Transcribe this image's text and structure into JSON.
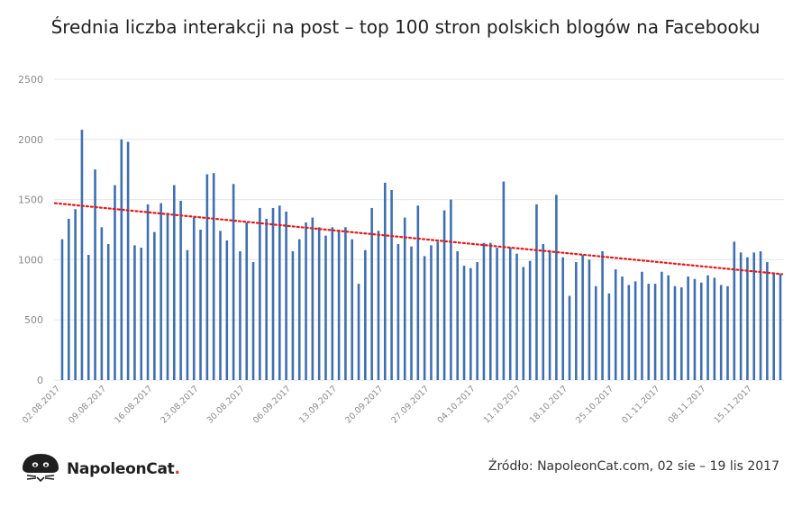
{
  "brand": {
    "name": "NapoleonCat",
    "dot": "."
  },
  "source": "Źródło: NapoleonCat.com, 02 sie – 19 lis 2017",
  "colors": {
    "bar": "#3f6fb1",
    "trend": "#e31a1c",
    "grid": "#e6e6e6",
    "axis_text": "#8a8a8a"
  },
  "icons": {
    "logo": "cat-logo-icon"
  },
  "chart_data": {
    "type": "bar",
    "title": "Średnia liczba interakcji na post – top 100 stron polskich blogów na Facebooku",
    "xlabel": "",
    "ylabel": "",
    "ylim": [
      0,
      2500
    ],
    "yticks": [
      0,
      500,
      1000,
      1500,
      2000,
      2500
    ],
    "grid": true,
    "legend": "none",
    "x_tick_labels": [
      "02.08.2017",
      "09.08.2017",
      "16.08.2017",
      "23.08.2017",
      "30.08.2017",
      "06.09.2017",
      "13.09.2017",
      "20.09.2017",
      "27.09.2017",
      "04.10.2017",
      "11.10.2017",
      "18.10.2017",
      "25.10.2017",
      "01.11.2017",
      "08.11.2017",
      "15.11.2017"
    ],
    "categories": [
      "02.08.2017",
      "03.08.2017",
      "04.08.2017",
      "05.08.2017",
      "06.08.2017",
      "07.08.2017",
      "08.08.2017",
      "09.08.2017",
      "10.08.2017",
      "11.08.2017",
      "12.08.2017",
      "13.08.2017",
      "14.08.2017",
      "15.08.2017",
      "16.08.2017",
      "17.08.2017",
      "18.08.2017",
      "19.08.2017",
      "20.08.2017",
      "21.08.2017",
      "22.08.2017",
      "23.08.2017",
      "24.08.2017",
      "25.08.2017",
      "26.08.2017",
      "27.08.2017",
      "28.08.2017",
      "29.08.2017",
      "30.08.2017",
      "31.08.2017",
      "01.09.2017",
      "02.09.2017",
      "03.09.2017",
      "04.09.2017",
      "05.09.2017",
      "06.09.2017",
      "07.09.2017",
      "08.09.2017",
      "09.09.2017",
      "10.09.2017",
      "11.09.2017",
      "12.09.2017",
      "13.09.2017",
      "14.09.2017",
      "15.09.2017",
      "16.09.2017",
      "17.09.2017",
      "18.09.2017",
      "19.09.2017",
      "20.09.2017",
      "21.09.2017",
      "22.09.2017",
      "23.09.2017",
      "24.09.2017",
      "25.09.2017",
      "26.09.2017",
      "27.09.2017",
      "28.09.2017",
      "29.09.2017",
      "30.09.2017",
      "01.10.2017",
      "02.10.2017",
      "03.10.2017",
      "04.10.2017",
      "05.10.2017",
      "06.10.2017",
      "07.10.2017",
      "08.10.2017",
      "09.10.2017",
      "10.10.2017",
      "11.10.2017",
      "12.10.2017",
      "13.10.2017",
      "14.10.2017",
      "15.10.2017",
      "16.10.2017",
      "17.10.2017",
      "18.10.2017",
      "19.10.2017",
      "20.10.2017",
      "21.10.2017",
      "22.10.2017",
      "23.10.2017",
      "24.10.2017",
      "25.10.2017",
      "26.10.2017",
      "27.10.2017",
      "28.10.2017",
      "29.10.2017",
      "30.10.2017",
      "31.10.2017",
      "01.11.2017",
      "02.11.2017",
      "03.11.2017",
      "04.11.2017",
      "05.11.2017",
      "06.11.2017",
      "07.11.2017",
      "08.11.2017",
      "09.11.2017",
      "10.11.2017",
      "11.11.2017",
      "12.11.2017",
      "13.11.2017",
      "14.11.2017",
      "15.11.2017",
      "16.11.2017",
      "17.11.2017",
      "18.11.2017",
      "19.11.2017"
    ],
    "values": [
      1170,
      1340,
      1420,
      2080,
      1040,
      1750,
      1270,
      1130,
      1620,
      2000,
      1980,
      1120,
      1100,
      1460,
      1230,
      1470,
      1390,
      1620,
      1490,
      1080,
      1350,
      1250,
      1710,
      1720,
      1240,
      1160,
      1630,
      1070,
      1310,
      980,
      1430,
      1340,
      1430,
      1450,
      1400,
      1070,
      1170,
      1310,
      1350,
      1270,
      1200,
      1270,
      1250,
      1270,
      1170,
      800,
      1080,
      1430,
      1240,
      1640,
      1580,
      1130,
      1350,
      1110,
      1450,
      1030,
      1120,
      1150,
      1410,
      1500,
      1070,
      950,
      930,
      980,
      1140,
      1140,
      1100,
      1650,
      1100,
      1050,
      940,
      990,
      1460,
      1130,
      1080,
      1540,
      1020,
      700,
      980,
      1040,
      1000,
      780,
      1070,
      720,
      920,
      860,
      790,
      820,
      900,
      800,
      800,
      900,
      870,
      780,
      770,
      860,
      840,
      810,
      870,
      850,
      790,
      780,
      1150,
      1060,
      1020,
      1060,
      1070,
      980,
      890,
      880
    ],
    "trendline": {
      "style": "dotted",
      "start": 1470,
      "end": 880
    }
  }
}
